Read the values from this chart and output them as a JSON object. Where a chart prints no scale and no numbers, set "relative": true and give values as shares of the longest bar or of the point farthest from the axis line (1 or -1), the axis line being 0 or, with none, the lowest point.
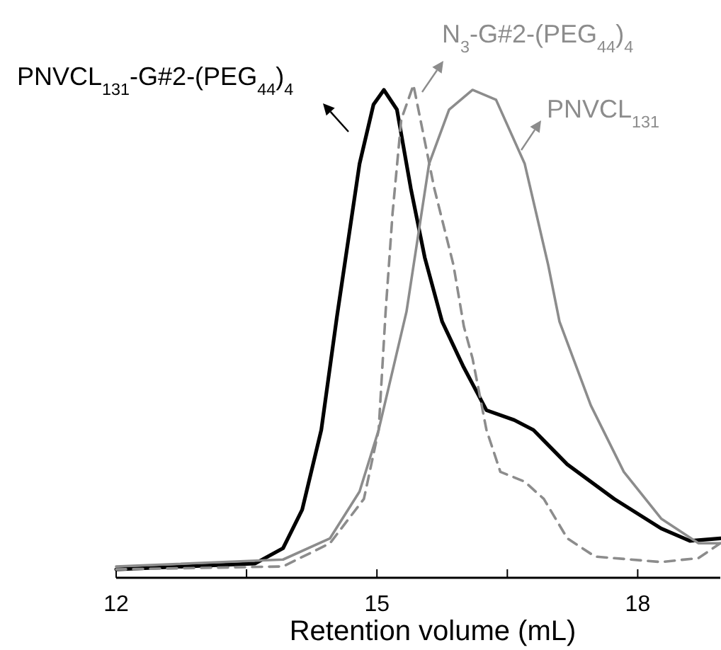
{
  "chart_data": {
    "type": "line",
    "relative": true,
    "xlabel": "Retention volume (mL)",
    "xlim": [
      12,
      18.95
    ],
    "xticks": [
      12,
      {
        "value": 13.5,
        "label": null
      },
      15,
      {
        "value": 16.5,
        "label": null
      },
      18
    ],
    "tick_labels": "x",
    "grid": false,
    "series": [
      {
        "name": "PNVCL$_{131}$-G#2-(PEG$_{44}$)$_{4}$",
        "color": "#000000",
        "line_style": "solid",
        "x": [
          12,
          13.6,
          13.92,
          14.14,
          14.36,
          14.54,
          14.8,
          14.96,
          15.08,
          15.23,
          15.39,
          15.55,
          15.75,
          15.99,
          16.26,
          16.58,
          16.8,
          17.19,
          17.73,
          18.27,
          18.6,
          18.95
        ],
        "values": [
          0.017,
          0.029,
          0.06,
          0.138,
          0.3,
          0.53,
          0.84,
          0.96,
          0.99,
          0.95,
          0.79,
          0.65,
          0.52,
          0.43,
          0.34,
          0.32,
          0.3,
          0.23,
          0.16,
          0.1,
          0.075,
          0.08
        ]
      },
      {
        "name": "N$_{3}$-G#2-(PEG$_{44}$)$_{4}$",
        "color": "#8c8c8c",
        "line_style": "dashed",
        "x": [
          12,
          13.92,
          14.46,
          14.85,
          15.02,
          15.1,
          15.18,
          15.28,
          15.42,
          15.5,
          15.66,
          15.88,
          16.0,
          16.1,
          16.26,
          16.42,
          16.7,
          16.92,
          17.19,
          17.51,
          18.27,
          18.7,
          18.95
        ],
        "values": [
          0.017,
          0.023,
          0.07,
          0.16,
          0.3,
          0.54,
          0.74,
          0.93,
          1,
          0.93,
          0.79,
          0.635,
          0.51,
          0.445,
          0.3,
          0.215,
          0.195,
          0.16,
          0.08,
          0.043,
          0.032,
          0.04,
          0.07
        ]
      },
      {
        "name": "PNVCL$_{131}$",
        "color": "#8c8c8c",
        "line_style": "solid",
        "x": [
          12,
          13.92,
          14.46,
          14.8,
          15.02,
          15.34,
          15.6,
          15.83,
          16.1,
          16.37,
          16.7,
          16.97,
          17.1,
          17.46,
          17.84,
          18.27,
          18.7,
          18.95
        ],
        "values": [
          0.023,
          0.037,
          0.08,
          0.175,
          0.3,
          0.54,
          0.84,
          0.95,
          0.99,
          0.97,
          0.84,
          0.635,
          0.52,
          0.35,
          0.215,
          0.12,
          0.07,
          0.07
        ]
      }
    ]
  }
}
